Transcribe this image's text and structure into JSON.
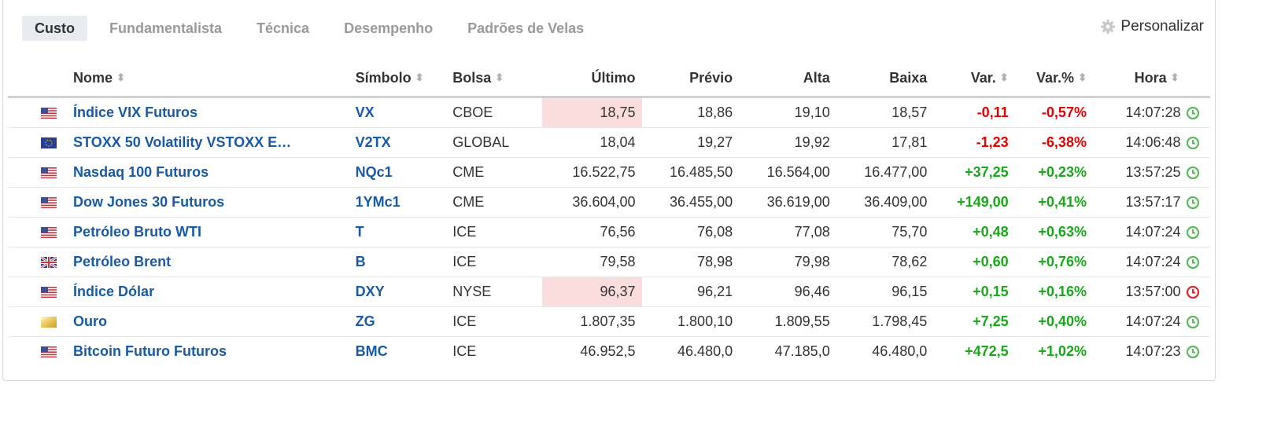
{
  "tabs": [
    {
      "label": "Custo",
      "active": true
    },
    {
      "label": "Fundamentalista",
      "active": false
    },
    {
      "label": "Técnica",
      "active": false
    },
    {
      "label": "Desempenho",
      "active": false
    },
    {
      "label": "Padrões de Velas",
      "active": false
    }
  ],
  "personalize_label": "Personalizar",
  "columns": {
    "name": "Nome",
    "symbol": "Símbolo",
    "exchange": "Bolsa",
    "last": "Último",
    "prev": "Prévio",
    "high": "Alta",
    "low": "Baixa",
    "chg": "Var.",
    "chg_pct": "Var.%",
    "time": "Hora"
  },
  "colors": {
    "link": "#1a5aa4",
    "up": "#1aa71a",
    "down": "#e40000",
    "highlight": "#fbdddd",
    "clock_ok": "#5cb85c",
    "clock_delayed": "#e0262a"
  },
  "rows": [
    {
      "flag": "us-flag-icon",
      "name": "Índice VIX Futuros",
      "symbol": "VX",
      "exchange": "CBOE",
      "last": "18,75",
      "last_highlight": true,
      "prev": "18,86",
      "high": "19,10",
      "low": "18,57",
      "chg": "-0,11",
      "chg_pct": "-0,57%",
      "direction": "down",
      "time": "14:07:28",
      "clock": "ok"
    },
    {
      "flag": "eu-flag-icon",
      "name": "STOXX 50 Volatility VSTOXX E…",
      "symbol": "V2TX",
      "exchange": "GLOBAL",
      "last": "18,04",
      "last_highlight": false,
      "prev": "19,27",
      "high": "19,92",
      "low": "17,81",
      "chg": "-1,23",
      "chg_pct": "-6,38%",
      "direction": "down",
      "time": "14:06:48",
      "clock": "ok"
    },
    {
      "flag": "us-flag-icon",
      "name": "Nasdaq 100 Futuros",
      "symbol": "NQc1",
      "exchange": "CME",
      "last": "16.522,75",
      "last_highlight": false,
      "prev": "16.485,50",
      "high": "16.564,00",
      "low": "16.477,00",
      "chg": "+37,25",
      "chg_pct": "+0,23%",
      "direction": "up",
      "time": "13:57:25",
      "clock": "ok"
    },
    {
      "flag": "us-flag-icon",
      "name": "Dow Jones 30 Futuros",
      "symbol": "1YMc1",
      "exchange": "CME",
      "last": "36.604,00",
      "last_highlight": false,
      "prev": "36.455,00",
      "high": "36.619,00",
      "low": "36.409,00",
      "chg": "+149,00",
      "chg_pct": "+0,41%",
      "direction": "up",
      "time": "13:57:17",
      "clock": "ok"
    },
    {
      "flag": "us-flag-icon",
      "name": "Petróleo Bruto WTI",
      "symbol": "T",
      "exchange": "ICE",
      "last": "76,56",
      "last_highlight": false,
      "prev": "76,08",
      "high": "77,08",
      "low": "75,70",
      "chg": "+0,48",
      "chg_pct": "+0,63%",
      "direction": "up",
      "time": "14:07:24",
      "clock": "ok"
    },
    {
      "flag": "uk-flag-icon",
      "name": "Petróleo Brent",
      "symbol": "B",
      "exchange": "ICE",
      "last": "79,58",
      "last_highlight": false,
      "prev": "78,98",
      "high": "79,98",
      "low": "78,62",
      "chg": "+0,60",
      "chg_pct": "+0,76%",
      "direction": "up",
      "time": "14:07:24",
      "clock": "ok"
    },
    {
      "flag": "us-flag-icon",
      "name": "Índice Dólar",
      "symbol": "DXY",
      "exchange": "NYSE",
      "last": "96,37",
      "last_highlight": true,
      "prev": "96,21",
      "high": "96,46",
      "low": "96,15",
      "chg": "+0,15",
      "chg_pct": "+0,16%",
      "direction": "up",
      "time": "13:57:00",
      "clock": "delayed"
    },
    {
      "flag": "gold-icon",
      "name": "Ouro",
      "symbol": "ZG",
      "exchange": "ICE",
      "last": "1.807,35",
      "last_highlight": false,
      "prev": "1.800,10",
      "high": "1.809,55",
      "low": "1.798,45",
      "chg": "+7,25",
      "chg_pct": "+0,40%",
      "direction": "up",
      "time": "14:07:24",
      "clock": "ok"
    },
    {
      "flag": "us-flag-icon",
      "name": "Bitcoin Futuro Futuros",
      "symbol": "BMC",
      "exchange": "ICE",
      "last": "46.952,5",
      "last_highlight": false,
      "prev": "46.480,0",
      "high": "47.185,0",
      "low": "46.480,0",
      "chg": "+472,5",
      "chg_pct": "+1,02%",
      "direction": "up",
      "time": "14:07:23",
      "clock": "ok"
    }
  ]
}
